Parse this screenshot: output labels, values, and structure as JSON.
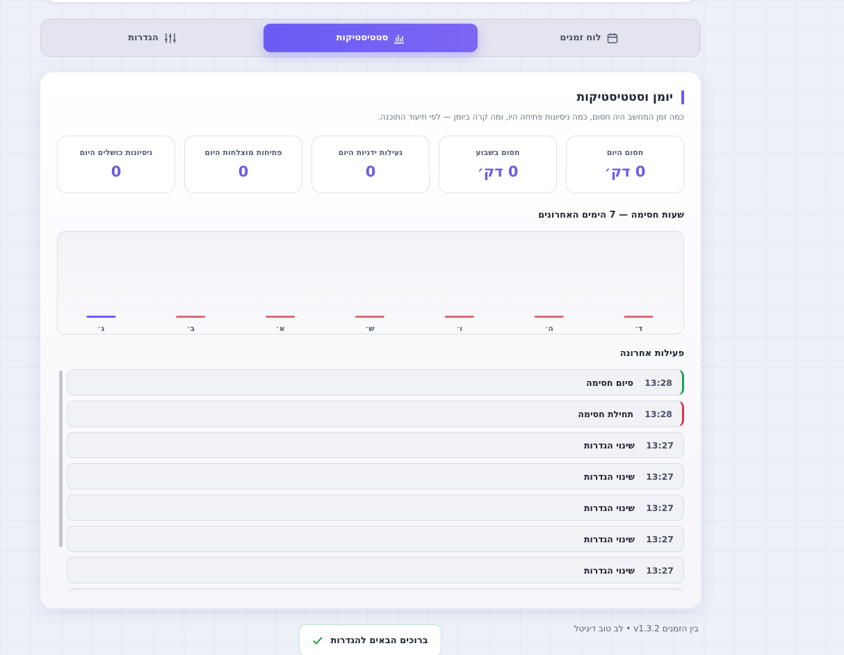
{
  "tabs": [
    "לוח זמנים",
    "סטטיסטיקות",
    "הגדרות"
  ],
  "card": {
    "title": "יומן וסטטיסטיקות",
    "subtitle": "כמה זמן המחשב היה חסום, כמה ניסיונות פתיחה היו, ומה קרה ביומן — לפי תיעוד התוכנה."
  },
  "stats": [
    {
      "label": "חסום היום",
      "value": "0 דק׳"
    },
    {
      "label": "חסום בשבוע",
      "value": "0 דק׳"
    },
    {
      "label": "נעילות ידניות היום",
      "value": "0"
    },
    {
      "label": "פתיחות מוצלחות היום",
      "value": "0"
    },
    {
      "label": "ניסיונות כושלים היום",
      "value": "0"
    }
  ],
  "chart_data": {
    "type": "bar",
    "title": "שעות חסימה — 7 הימים האחרונים",
    "categories": [
      "ד׳",
      "ה׳",
      "ו׳",
      "ש׳",
      "א׳",
      "ב׳",
      "ג׳"
    ],
    "values": [
      0,
      0,
      0,
      0,
      0,
      0,
      0
    ],
    "colors": [
      "#e0676f",
      "#e0676f",
      "#e0676f",
      "#e0676f",
      "#e0676f",
      "#e0676f",
      "#6a5cf0"
    ],
    "ylim": [
      0,
      24
    ]
  },
  "activity_title": "פעילות אחרונה",
  "activity": [
    {
      "time": "13:28",
      "event": "סיום חסימה",
      "color": "#16a34a"
    },
    {
      "time": "13:28",
      "event": "תחילת חסימה",
      "color": "#dc3545"
    },
    {
      "time": "13:27",
      "event": "שינוי הגדרות"
    },
    {
      "time": "13:27",
      "event": "שינוי הגדרות"
    },
    {
      "time": "13:27",
      "event": "שינוי הגדרות"
    },
    {
      "time": "13:27",
      "event": "שינוי הגדרות"
    },
    {
      "time": "13:27",
      "event": "שינוי הגדרות"
    }
  ],
  "footer": "בין הזמנים v1.3.2 • לב טוב דיגיטל",
  "toast": "ברוכים הבאים להגדרות"
}
